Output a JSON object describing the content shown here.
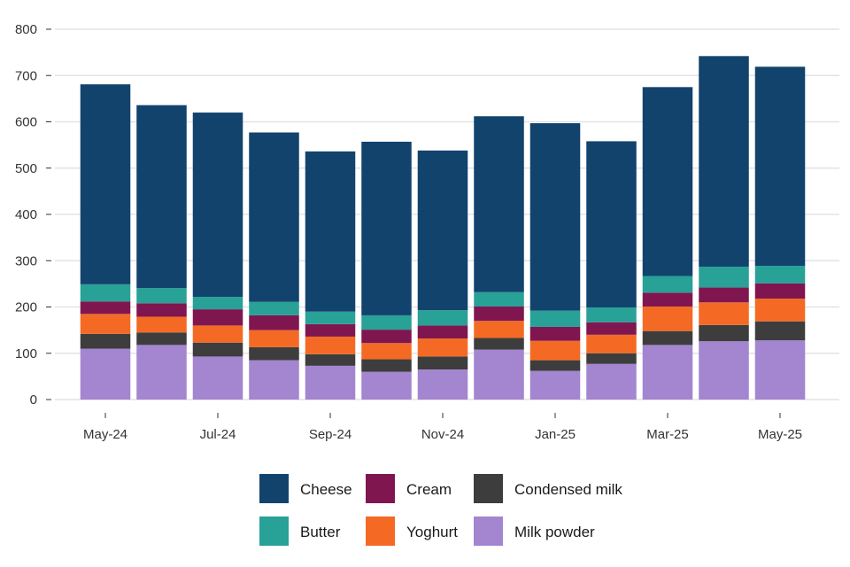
{
  "chart_data": {
    "type": "bar",
    "stacked": true,
    "x": [
      "May-24",
      "Jun-24",
      "Jul-24",
      "Aug-24",
      "Sep-24",
      "Oct-24",
      "Nov-24",
      "Dec-24",
      "Jan-25",
      "Feb-25",
      "Mar-25",
      "Apr-25",
      "May-25"
    ],
    "x_tick_labels": [
      "May-24",
      "Jul-24",
      "Sep-24",
      "Nov-24",
      "Jan-25",
      "Mar-25",
      "May-25"
    ],
    "y_ticks": [
      0,
      100,
      200,
      300,
      400,
      500,
      600,
      700,
      800
    ],
    "ylim": [
      0,
      800
    ],
    "grid": "horizontal",
    "legend": "bottom",
    "series": [
      {
        "name": "Milk powder",
        "color": "#a385d0",
        "values": [
          110,
          118,
          93,
          85,
          73,
          60,
          65,
          108,
          62,
          77,
          118,
          126,
          128
        ]
      },
      {
        "name": "Condensed milk",
        "color": "#3d3d3d",
        "values": [
          32,
          27,
          30,
          28,
          25,
          27,
          28,
          25,
          23,
          23,
          30,
          35,
          41
        ]
      },
      {
        "name": "Yoghurt",
        "color": "#f46a25",
        "values": [
          43,
          34,
          37,
          37,
          38,
          35,
          39,
          37,
          42,
          40,
          53,
          49,
          49
        ]
      },
      {
        "name": "Cream",
        "color": "#801650",
        "values": [
          27,
          29,
          35,
          32,
          27,
          29,
          28,
          31,
          30,
          27,
          30,
          32,
          33
        ]
      },
      {
        "name": "Butter",
        "color": "#28a197",
        "values": [
          37,
          33,
          27,
          29,
          27,
          31,
          33,
          31,
          35,
          32,
          36,
          45,
          38
        ]
      },
      {
        "name": "Cheese",
        "color": "#12436d",
        "values": [
          432,
          395,
          398,
          366,
          346,
          375,
          345,
          380,
          405,
          359,
          408,
          455,
          430
        ]
      }
    ],
    "legend_order": [
      "Cheese",
      "Cream",
      "Condensed milk",
      "Butter",
      "Yoghurt",
      "Milk powder"
    ]
  }
}
